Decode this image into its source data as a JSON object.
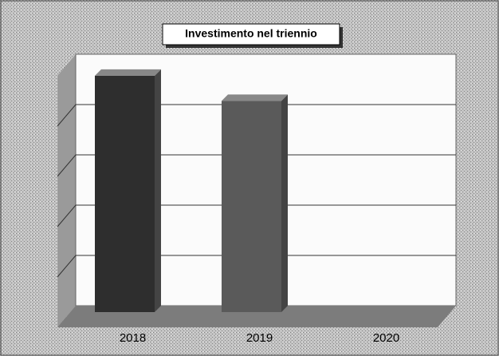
{
  "chart_data": {
    "type": "bar",
    "title": "Investimento nel triennio",
    "categories": [
      "2018",
      "2019",
      "2020"
    ],
    "values": [
      4.7,
      4.2,
      0
    ],
    "colors": [
      "#2e2e2e",
      "#5a5a5a",
      "#5a5a5a"
    ],
    "ylim": [
      0,
      5
    ],
    "yticks": [
      1,
      2,
      3,
      4
    ],
    "grid": true
  }
}
